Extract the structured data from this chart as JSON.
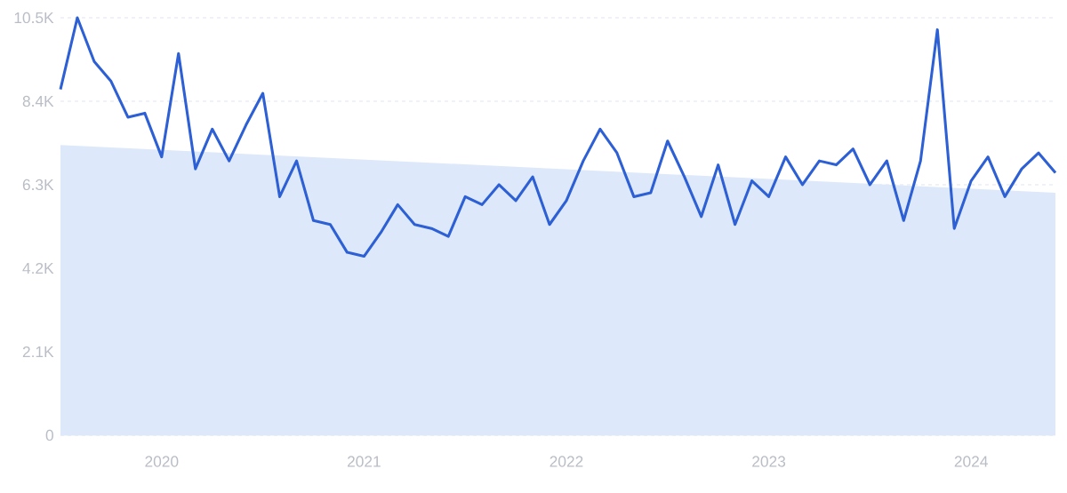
{
  "chart_data": {
    "type": "line",
    "x": [
      "2019-07",
      "2019-08",
      "2019-09",
      "2019-10",
      "2019-11",
      "2019-12",
      "2020-01",
      "2020-02",
      "2020-03",
      "2020-04",
      "2020-05",
      "2020-06",
      "2020-07",
      "2020-08",
      "2020-09",
      "2020-10",
      "2020-11",
      "2020-12",
      "2021-01",
      "2021-02",
      "2021-03",
      "2021-04",
      "2021-05",
      "2021-06",
      "2021-07",
      "2021-08",
      "2021-09",
      "2021-10",
      "2021-11",
      "2021-12",
      "2022-01",
      "2022-02",
      "2022-03",
      "2022-04",
      "2022-05",
      "2022-06",
      "2022-07",
      "2022-08",
      "2022-09",
      "2022-10",
      "2022-11",
      "2022-12",
      "2023-01",
      "2023-02",
      "2023-03",
      "2023-04",
      "2023-05",
      "2023-06",
      "2023-07",
      "2023-08",
      "2023-09",
      "2023-10",
      "2023-11",
      "2023-12",
      "2024-01",
      "2024-02",
      "2024-03",
      "2024-04",
      "2024-05",
      "2024-06"
    ],
    "series": [
      {
        "type": "area",
        "color": "#dde9fa",
        "x": [
          "2019-07",
          "2024-06"
        ],
        "values": [
          7300,
          6100
        ]
      },
      {
        "color": "#2d5fd5",
        "values": [
          8700,
          10500,
          9400,
          8900,
          8000,
          8100,
          7000,
          9600,
          6700,
          7700,
          6900,
          7800,
          8600,
          6000,
          6900,
          5400,
          5300,
          4600,
          4500,
          5100,
          5800,
          5300,
          5200,
          5000,
          6000,
          5800,
          6300,
          5900,
          6500,
          5300,
          5900,
          6900,
          7700,
          7100,
          6000,
          6100,
          7400,
          6500,
          5500,
          6800,
          5300,
          6400,
          6000,
          7000,
          6300,
          6900,
          6800,
          7200,
          6300,
          6900,
          5400,
          6900,
          10200,
          5200,
          6400,
          7000,
          6000,
          6700,
          7100,
          6600
        ]
      }
    ],
    "xlim": [
      "2019-07",
      "2024-06"
    ],
    "xticks": [
      "2020",
      "2021",
      "2022",
      "2023",
      "2024"
    ],
    "ylim": [
      0,
      10500
    ],
    "yticks": [
      0,
      {
        "value": 2100,
        "label": "2.1K"
      },
      {
        "value": 4200,
        "label": "4.2K"
      },
      {
        "value": 6300,
        "label": "6.3K"
      },
      {
        "value": 8400,
        "label": "8.4K"
      },
      {
        "value": 10500,
        "label": "10.5K"
      }
    ],
    "grid": "y",
    "marker": "none"
  }
}
